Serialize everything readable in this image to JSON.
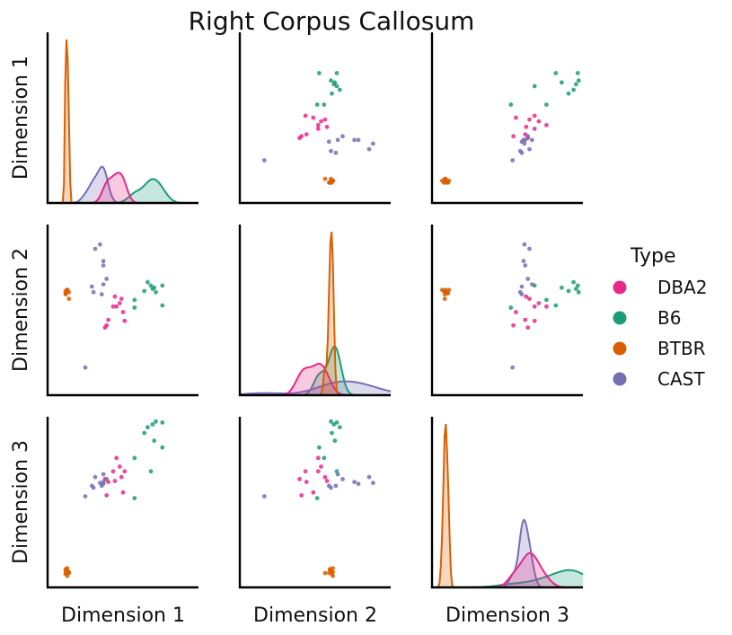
{
  "chart_data": {
    "type": "pairplot",
    "title": "Right Corpus Callosum",
    "variables": [
      "Dimension 1",
      "Dimension 2",
      "Dimension 3"
    ],
    "diagonal": "kde",
    "legend": {
      "title": "Type",
      "placement": "right"
    },
    "series": [
      {
        "name": "DBA2",
        "color": "#e7298a",
        "points": [
          [
            0.0,
            0.19,
            0.62
          ],
          [
            0.02,
            0.22,
            0.53
          ],
          [
            -0.02,
            0.19,
            0.48
          ],
          [
            -0.01,
            0.28,
            0.38
          ],
          [
            0.03,
            0.26,
            0.42
          ],
          [
            0.05,
            0.06,
            0.48
          ],
          [
            0.04,
            0.14,
            0.26
          ],
          [
            -0.05,
            0.07,
            0.37
          ],
          [
            -0.07,
            0.0,
            0.4
          ],
          [
            -0.06,
            0.02,
            0.23
          ]
        ]
      },
      {
        "name": "B6",
        "color": "#1b9e77",
        "points": [
          [
            0.23,
            0.36,
            0.8
          ],
          [
            0.24,
            0.32,
            1.0
          ],
          [
            0.28,
            0.38,
            0.99
          ],
          [
            0.21,
            0.38,
            0.48
          ],
          [
            0.28,
            0.2,
            0.73
          ],
          [
            0.22,
            0.35,
            0.97
          ],
          [
            0.11,
            0.25,
            0.62
          ],
          [
            0.19,
            0.41,
            0.94
          ],
          [
            0.11,
            0.18,
            0.2
          ],
          [
            0.17,
            0.33,
            0.88
          ]
        ]
      },
      {
        "name": "BTBR",
        "color": "#d95f02",
        "points": [
          [
            -0.3,
            0.32,
            -0.56
          ],
          [
            -0.31,
            0.31,
            -0.55
          ],
          [
            -0.3,
            0.34,
            -0.53
          ],
          [
            -0.31,
            0.33,
            -0.59
          ],
          [
            -0.29,
            0.26,
            -0.58
          ],
          [
            -0.31,
            0.31,
            -0.54
          ],
          [
            -0.3,
            0.34,
            -0.61
          ],
          [
            -0.3,
            0.34,
            -0.57
          ],
          [
            -0.29,
            0.32,
            -0.57
          ],
          [
            -0.31,
            0.3,
            -0.58
          ]
        ]
      },
      {
        "name": "CAST",
        "color": "#7570b3",
        "points": [
          [
            -0.08,
            0.39,
            0.45
          ],
          [
            -0.06,
            0.44,
            0.4
          ],
          [
            -0.09,
            0.3,
            0.33
          ],
          [
            -0.14,
            0.32,
            0.31
          ],
          [
            -0.1,
            0.75,
            0.36
          ],
          [
            -0.08,
            0.6,
            0.35
          ],
          [
            -0.15,
            0.37,
            0.33
          ],
          [
            -0.19,
            -0.36,
            0.22
          ],
          [
            -0.08,
            0.56,
            0.37
          ],
          [
            -0.13,
            0.71,
            0.42
          ]
        ]
      }
    ],
    "ranges": [
      [
        -0.42,
        0.5
      ],
      [
        -0.61,
        0.93
      ],
      [
        -0.73,
        1.05
      ]
    ]
  }
}
